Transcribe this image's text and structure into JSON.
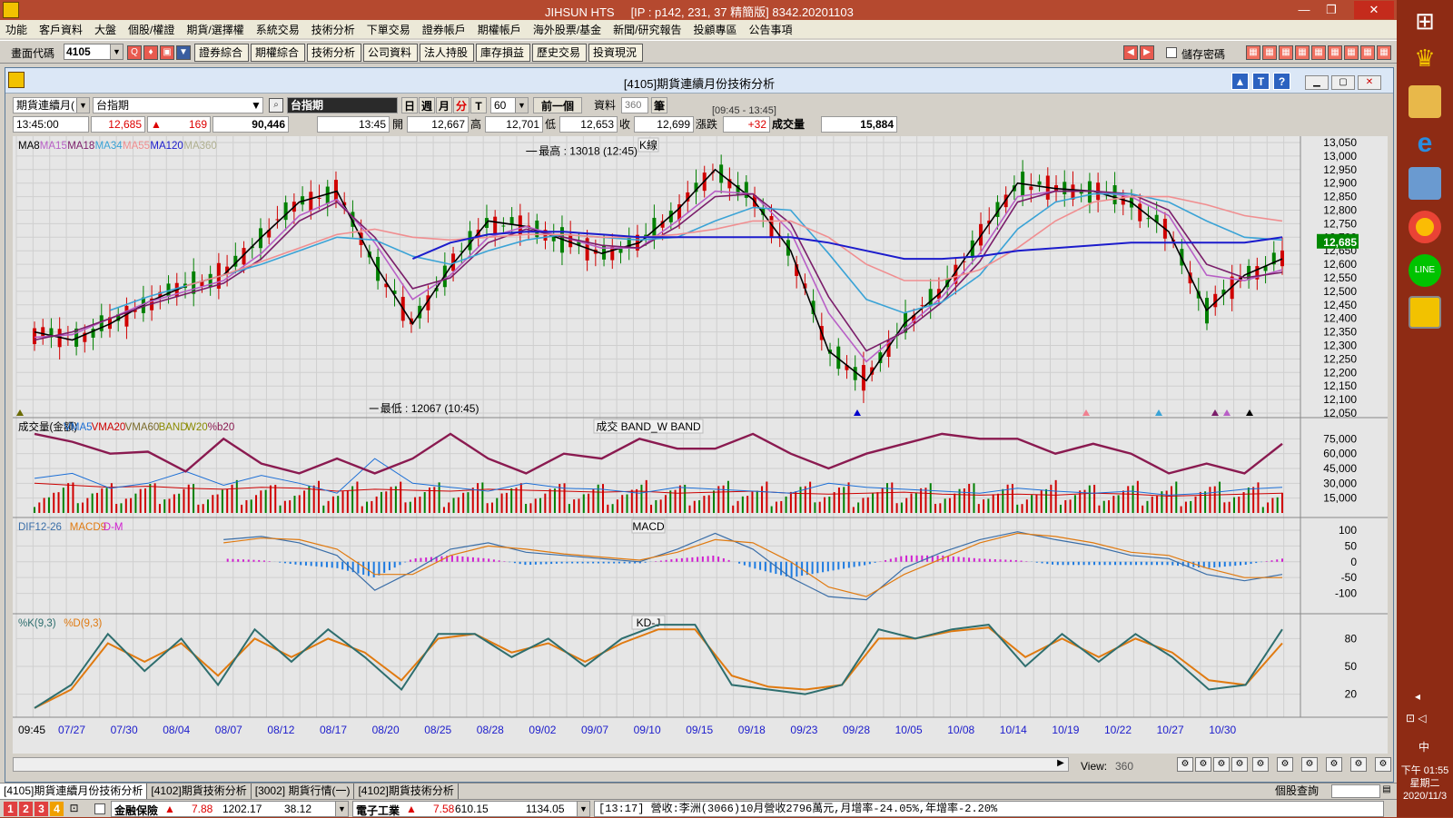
{
  "window": {
    "app": "JIHSUN HTS",
    "ip": "[IP : p142, 231, 37 精簡版] 8342.20201103"
  },
  "menu": [
    "功能",
    "客戶資料",
    "大盤",
    "個股/權證",
    "期貨/選擇權",
    "系統交易",
    "技術分析",
    "下單交易",
    "證券帳戶",
    "期權帳戶",
    "海外股票/基金",
    "新聞/研究報告",
    "投顧專區",
    "公告事項"
  ],
  "toolbar": {
    "code_label": "畫面代碼",
    "code_value": "4105",
    "buttons": [
      "證券綜合",
      "期權綜合",
      "技術分析",
      "公司資料",
      "法人持股",
      "庫存損益",
      "歷史交易",
      "投資現況"
    ],
    "save_pw": "儲存密碼"
  },
  "child": {
    "title": "[4105]期貨連續月份技術分析",
    "range": "[09:45 - 13:45]"
  },
  "controls": {
    "product_type": "期貨連續月(",
    "product": "台指期",
    "name": "台指期",
    "periods": [
      "日",
      "週",
      "月",
      "分",
      "T"
    ],
    "minutes": "60",
    "prev": "前一個",
    "data_label": "資料",
    "data_count": "360",
    "unit": "筆"
  },
  "quote": {
    "time": "13:45:00",
    "price": "12,685",
    "change": "169",
    "volume": "90,446",
    "bar_time": "13:45",
    "open_label": "開",
    "open": "12,667",
    "high_label": "高",
    "high": "12,701",
    "low_label": "低",
    "low": "12,653",
    "close_label": "收",
    "close": "12,699",
    "chg_label": "漲跌",
    "chg": "+32",
    "vol_label": "成交量",
    "vol": "15,884"
  },
  "panels": {
    "kline": {
      "title": "K線",
      "legend": [
        "MA8",
        "MA15",
        "MA18",
        "MA34",
        "MA55",
        "MA120",
        "MA360"
      ],
      "legend_colors": [
        "#000000",
        "#b85fc6",
        "#7a1d6a",
        "#3aa3d6",
        "#f08e90",
        "#1c1ccc",
        "#b0b090"
      ],
      "high_note": "最高 : 13018 (12:45)",
      "low_note": "最低 : 12067 (10:45)",
      "last_price": "12,685",
      "yticks": [
        "13,050",
        "13,000",
        "12,950",
        "12,900",
        "12,850",
        "12,800",
        "12,750",
        "12,700",
        "12,650",
        "12,600",
        "12,550",
        "12,500",
        "12,450",
        "12,400",
        "12,350",
        "12,300",
        "12,250",
        "12,200",
        "12,150",
        "12,100",
        "12,050"
      ]
    },
    "volume": {
      "title": "成交  BAND_W  BAND",
      "legend": [
        "成交量(金額)",
        "VMA5",
        "VMA20",
        "VMA60",
        "BAND",
        "W20",
        "%b20"
      ],
      "legend_colors": [
        "#000000",
        "#1c6fd6",
        "#cc0000",
        "#7a6a2a",
        "#8a8a00",
        "#8a8a00",
        "#8a1a50"
      ],
      "yticks": [
        "75,000",
        "60,000",
        "45,000",
        "30,000",
        "15,000"
      ]
    },
    "macd": {
      "title": "MACD",
      "legend": [
        "DIF12-26",
        "MACD9",
        "D-M"
      ],
      "legend_colors": [
        "#3a6ea8",
        "#e07a10",
        "#d020d0"
      ],
      "yticks": [
        "100",
        "50",
        "0",
        "-50",
        "-100"
      ]
    },
    "kd": {
      "title": "KD-J",
      "legend": [
        "%K(9,3)",
        "%D(9,3)"
      ],
      "legend_colors": [
        "#2e6e6e",
        "#e07a10"
      ],
      "yticks": [
        "80",
        "50",
        "20"
      ]
    }
  },
  "xaxis": [
    "09:45",
    "07/27",
    "07/30",
    "08/04",
    "08/07",
    "08/12",
    "08/17",
    "08/20",
    "08/25",
    "08/28",
    "09/02",
    "09/07",
    "09/10",
    "09/15",
    "09/18",
    "09/23",
    "09/28",
    "10/05",
    "10/08",
    "10/14",
    "10/19",
    "10/22",
    "10/27",
    "10/30"
  ],
  "bottom": {
    "view_label": "View:",
    "view_value": "360"
  },
  "tabs": [
    "[4105]期貨連續月份技術分析",
    "[4102]期貨技術分析",
    "[3002] 期貨行情(一)",
    "[4102]期貨技術分析"
  ],
  "right_tab": "個股查詢",
  "status": {
    "nums": [
      "1",
      "2",
      "3",
      "4"
    ],
    "s1_name": "金融保險",
    "s1_v1": "7.88",
    "s1_v2": "1202.17",
    "s1_v3": "38.12",
    "s2_name": "電子工業",
    "s2_v1": "7.58",
    "s2_v2": "610.15",
    "s2_v3": "1134.05",
    "news": "[13:17] 營收:李洲(3066)10月營收2796萬元,月增率-24.05%,年增率-2.20%"
  },
  "taskbar": {
    "time": "下午 01:55",
    "weekday": "星期二",
    "date": "2020/11/3",
    "ime": "中"
  },
  "chart_data": [
    {
      "type": "line",
      "title": "K線",
      "ylim": [
        12050,
        13050
      ],
      "xlabels": [
        "09:45",
        "07/27",
        "07/30",
        "08/04",
        "08/07",
        "08/12",
        "08/17",
        "08/20",
        "08/25",
        "08/28",
        "09/02",
        "09/07",
        "09/10",
        "09/15",
        "09/18",
        "09/23",
        "09/28",
        "10/05",
        "10/08",
        "10/14",
        "10/19",
        "10/22",
        "10/27",
        "10/30"
      ],
      "series": [
        {
          "name": "MA8",
          "values": [
            12350,
            12320,
            12380,
            12460,
            12520,
            12560,
            12700,
            12830,
            12870,
            12600,
            12380,
            12590,
            12760,
            12740,
            12690,
            12640,
            12680,
            12800,
            12950,
            12840,
            12650,
            12280,
            12170,
            12380,
            12500,
            12700,
            12900,
            12880,
            12870,
            12830,
            12720,
            12430,
            12560,
            12620
          ]
        },
        {
          "name": "MA15",
          "values": [
            12330,
            12340,
            12400,
            12460,
            12500,
            12540,
            12640,
            12780,
            12840,
            12680,
            12470,
            12560,
            12700,
            12740,
            12700,
            12660,
            12660,
            12760,
            12870,
            12860,
            12720,
            12420,
            12240,
            12360,
            12480,
            12640,
            12850,
            12870,
            12870,
            12850,
            12780,
            12560,
            12540,
            12580
          ]
        },
        {
          "name": "MA18",
          "values": [
            12320,
            12350,
            12400,
            12450,
            12490,
            12530,
            12620,
            12760,
            12830,
            12700,
            12510,
            12550,
            12680,
            12730,
            12700,
            12670,
            12660,
            12740,
            12850,
            12860,
            12750,
            12480,
            12280,
            12350,
            12460,
            12610,
            12830,
            12870,
            12870,
            12860,
            12800,
            12600,
            12550,
            12570
          ]
        },
        {
          "name": "MA34",
          "values": [
            null,
            null,
            12430,
            12480,
            12520,
            12560,
            12600,
            12650,
            12700,
            12690,
            12630,
            12600,
            12650,
            12690,
            12710,
            12700,
            12690,
            12700,
            12760,
            12810,
            12800,
            12640,
            12470,
            12420,
            12460,
            12560,
            12730,
            12830,
            12860,
            12860,
            12830,
            12760,
            12700,
            12690
          ]
        },
        {
          "name": "MA55",
          "values": [
            null,
            null,
            null,
            null,
            12520,
            12560,
            12610,
            12660,
            12710,
            12730,
            12700,
            12690,
            12700,
            12710,
            12710,
            12700,
            12700,
            12710,
            12730,
            12760,
            12760,
            12700,
            12600,
            12540,
            12540,
            12580,
            12660,
            12760,
            12830,
            12850,
            12850,
            12820,
            12780,
            12760
          ]
        },
        {
          "name": "MA120",
          "values": [
            null,
            null,
            null,
            null,
            null,
            null,
            null,
            null,
            null,
            null,
            12620,
            12680,
            12710,
            12720,
            12720,
            12710,
            12700,
            12700,
            12700,
            12700,
            12700,
            12680,
            12650,
            12620,
            12620,
            12630,
            12650,
            12660,
            12670,
            12680,
            12680,
            12680,
            12680,
            12700
          ]
        }
      ]
    },
    {
      "type": "bar",
      "title": "成交  BAND_W  BAND",
      "ylim": [
        0,
        90000
      ],
      "series": [
        {
          "name": "%b20",
          "values": [
            80000,
            72000,
            60000,
            62000,
            42000,
            75000,
            50000,
            40000,
            55000,
            40000,
            55000,
            80000,
            55000,
            40000,
            60000,
            55000,
            75000,
            65000,
            65000,
            80000,
            60000,
            45000,
            60000,
            70000,
            80000,
            75000,
            75000,
            60000,
            70000,
            60000,
            40000,
            50000,
            40000,
            70000
          ]
        }
      ]
    },
    {
      "type": "line",
      "title": "MACD",
      "ylim": [
        -150,
        120
      ],
      "series": [
        {
          "name": "DIF12-26",
          "values": [
            null,
            null,
            null,
            null,
            null,
            70,
            80,
            60,
            20,
            -90,
            -30,
            40,
            60,
            30,
            20,
            10,
            0,
            40,
            90,
            40,
            -50,
            -110,
            -120,
            -20,
            30,
            70,
            95,
            70,
            50,
            20,
            10,
            -40,
            -60,
            -40
          ]
        },
        {
          "name": "MACD9",
          "values": [
            null,
            null,
            null,
            null,
            null,
            60,
            75,
            70,
            40,
            -40,
            -40,
            20,
            50,
            40,
            25,
            15,
            5,
            30,
            70,
            60,
            0,
            -80,
            -110,
            -40,
            10,
            60,
            90,
            80,
            60,
            30,
            20,
            -20,
            -50,
            -50
          ]
        },
        {
          "name": "D-M",
          "values": [
            null,
            null,
            null,
            null,
            null,
            10,
            5,
            -10,
            -20,
            -50,
            10,
            20,
            10,
            -10,
            -5,
            -5,
            -5,
            10,
            20,
            -20,
            -50,
            -30,
            -10,
            20,
            20,
            10,
            5,
            -10,
            -10,
            -10,
            -10,
            -20,
            -10,
            10
          ]
        }
      ]
    },
    {
      "type": "line",
      "title": "KD-J",
      "ylim": [
        0,
        100
      ],
      "series": [
        {
          "name": "%K(9,3)",
          "values": [
            5,
            30,
            85,
            45,
            80,
            30,
            90,
            55,
            90,
            60,
            25,
            85,
            85,
            60,
            80,
            50,
            80,
            95,
            95,
            30,
            25,
            20,
            30,
            90,
            80,
            90,
            95,
            50,
            85,
            55,
            85,
            60,
            25,
            30,
            90
          ]
        },
        {
          "name": "%D(9,3)",
          "values": [
            5,
            25,
            75,
            55,
            75,
            40,
            80,
            60,
            80,
            65,
            35,
            80,
            85,
            65,
            75,
            55,
            75,
            90,
            90,
            40,
            28,
            25,
            30,
            80,
            80,
            88,
            92,
            60,
            80,
            60,
            80,
            65,
            35,
            30,
            75
          ]
        }
      ]
    }
  ]
}
